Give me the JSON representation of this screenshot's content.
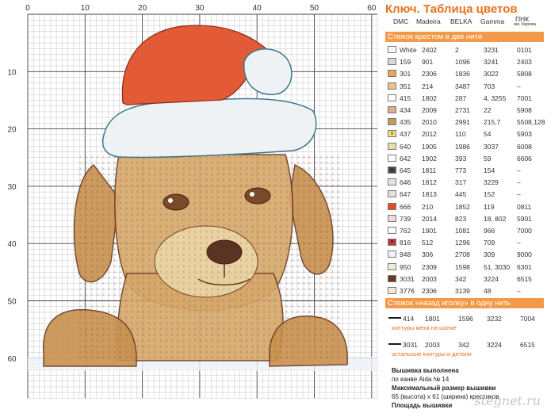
{
  "pattern": {
    "axis_ticks_top": [
      "0",
      "10",
      "20",
      "30",
      "40",
      "50",
      "60"
    ],
    "axis_ticks_left": [
      "10",
      "20",
      "30",
      "40",
      "50",
      "60"
    ]
  },
  "key": {
    "title": "Ключ. Таблица цветов",
    "columns": [
      "DMC",
      "Madeira",
      "BELKA",
      "Gamma",
      "ПНК"
    ],
    "pnk_sub": "им. Кирова",
    "section1": "Стежок крестом в две нити",
    "rows": [
      {
        "color": "#ffffff",
        "mark": "·",
        "dmc": "White",
        "madeira": "2402",
        "belka": "2",
        "gamma": "3231",
        "pnk": "0101"
      },
      {
        "color": "#d8d8d8",
        "mark": "",
        "dmc": "159",
        "madeira": "901",
        "belka": "1096",
        "gamma": "3241",
        "pnk": "2403"
      },
      {
        "color": "#f2a15c",
        "mark": "",
        "dmc": "301",
        "madeira": "2306",
        "belka": "1836",
        "gamma": "3022",
        "pnk": "5808"
      },
      {
        "color": "#f0c090",
        "mark": "",
        "dmc": "351",
        "madeira": "214",
        "belka": "3487",
        "gamma": "703",
        "pnk": "–"
      },
      {
        "color": "#ffffff",
        "mark": "",
        "dmc": "415",
        "madeira": "1802",
        "belka": "287",
        "gamma": "4, 3255",
        "pnk": "7001"
      },
      {
        "color": "#d9b089",
        "mark": "",
        "dmc": "434",
        "madeira": "2009",
        "belka": "2731",
        "gamma": "22",
        "pnk": "5908"
      },
      {
        "color": "#c99a5f",
        "mark": "",
        "dmc": "435",
        "madeira": "2010",
        "belka": "2991",
        "gamma": "215,7",
        "pnk": "5508,128"
      },
      {
        "color": "#f5e07e",
        "mark": "x",
        "dmc": "437",
        "madeira": "2012",
        "belka": "110",
        "gamma": "54",
        "pnk": "5903"
      },
      {
        "color": "#e8dfa8",
        "mark": "",
        "dmc": "640",
        "madeira": "1905",
        "belka": "1986",
        "gamma": "3037",
        "pnk": "6008"
      },
      {
        "color": "#ffffff",
        "mark": "",
        "dmc": "642",
        "madeira": "1902",
        "belka": "393",
        "gamma": "59",
        "pnk": "6606"
      },
      {
        "color": "#4a4a4a",
        "mark": "◆",
        "dmc": "645",
        "madeira": "1811",
        "belka": "773",
        "gamma": "154",
        "pnk": "–"
      },
      {
        "color": "#dfe8df",
        "mark": "",
        "dmc": "646",
        "madeira": "1812",
        "belka": "317",
        "gamma": "3229",
        "pnk": "–"
      },
      {
        "color": "#e0e0e0",
        "mark": "",
        "dmc": "647",
        "madeira": "1813",
        "belka": "445",
        "gamma": "152",
        "pnk": "–"
      },
      {
        "color": "#e34a2c",
        "mark": "",
        "dmc": "666",
        "madeira": "210",
        "belka": "1852",
        "gamma": "119",
        "pnk": "0811"
      },
      {
        "color": "#f4d6d6",
        "mark": "",
        "dmc": "739",
        "madeira": "2014",
        "belka": "823",
        "gamma": "18, 802",
        "pnk": "5901"
      },
      {
        "color": "#ffffff",
        "mark": "",
        "dmc": "762",
        "madeira": "1901",
        "belka": "1081",
        "gamma": "966",
        "pnk": "7000"
      },
      {
        "color": "#c23a3a",
        "mark": "♥",
        "dmc": "816",
        "madeira": "512",
        "belka": "1296",
        "gamma": "709",
        "pnk": "–"
      },
      {
        "color": "#f0f0ff",
        "mark": "",
        "dmc": "948",
        "madeira": "306",
        "belka": "2708",
        "gamma": "309",
        "pnk": "9000"
      },
      {
        "color": "#f2ead8",
        "mark": "",
        "dmc": "950",
        "madeira": "2309",
        "belka": "1598",
        "gamma": "51, 3030",
        "pnk": "6301"
      },
      {
        "color": "#6a3a1f",
        "mark": "",
        "dmc": "3031",
        "madeira": "2003",
        "belka": "342",
        "gamma": "3224",
        "pnk": "6515"
      },
      {
        "color": "#f7ecd0",
        "mark": "",
        "dmc": "3776",
        "madeira": "2306",
        "belka": "3139",
        "gamma": "48",
        "pnk": "–"
      }
    ],
    "section2": "Стежок «назад иголку» в одну нить",
    "back_rows": [
      {
        "dmc": "414",
        "madeira": "1801",
        "belka": "1596",
        "gamma": "3232",
        "pnk": "7004",
        "note": "контуры меха на шапке"
      },
      {
        "dmc": "3031",
        "madeira": "2003",
        "belka": "342",
        "gamma": "3224",
        "pnk": "6515",
        "note": "остальные контуры и детали"
      }
    ],
    "footer": {
      "line1": "Вышивка выполнена",
      "line2": "по канве Aida № 14",
      "line3": "Максимальный размер вышивки",
      "line4": "65 (высота) x 61 (ширина) крестиков",
      "line5": "Площадь вышивки"
    },
    "watermark": "stegnet.ru"
  },
  "colors": {
    "accent": "#e8711f",
    "band": "#f39a4a",
    "note": "#e8711f"
  }
}
